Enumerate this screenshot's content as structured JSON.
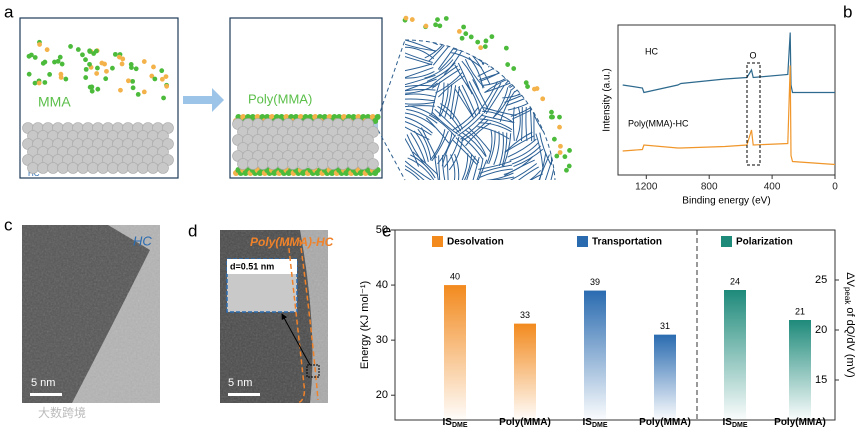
{
  "panel_labels": {
    "a": "a",
    "b": "b",
    "c": "c",
    "d": "d",
    "e": "e"
  },
  "panel_a": {
    "left_label": "MMA",
    "right_label": "Poly(MMA)",
    "substrate_label": "HC"
  },
  "panel_c": {
    "label": "HC",
    "scale_bar": "5 nm"
  },
  "panel_d": {
    "label": "Poly(MMA)-HC",
    "spacing": "d=0.51 nm",
    "scale_bar": "5 nm"
  },
  "watermark": "大数跨境",
  "chart_data": [
    {
      "type": "line",
      "panel": "b",
      "xlabel": "Binding energy (eV)",
      "ylabel": "Intensity (a.u.)",
      "xlim": [
        1380,
        0
      ],
      "xticks": [
        1200,
        800,
        400,
        0
      ],
      "ylim": [
        0,
        100
      ],
      "annotations": [
        "O"
      ],
      "x": [
        1350,
        1225,
        1215,
        1000,
        980,
        700,
        560,
        531,
        520,
        300,
        285,
        280,
        270,
        0
      ],
      "series": [
        {
          "name": "HC",
          "color": "#2e6a8e",
          "values": [
            60,
            58,
            55,
            60,
            61,
            64,
            65,
            70,
            65,
            67,
            95,
            60,
            55,
            55
          ]
        },
        {
          "name": "Poly(MMA)-HC",
          "color": "#f0962a",
          "values": [
            16,
            17,
            20,
            18,
            18,
            19,
            20,
            30,
            20,
            21,
            73,
            13,
            9,
            7
          ]
        }
      ]
    },
    {
      "type": "bar",
      "panel": "e",
      "ylabel": "Energy (KJ mol⁻¹)",
      "y2label": "ΔV",
      "y2label_sub": "peak",
      "y2label_rest": " of dQ/dV (mV)",
      "ylim": [
        15.5,
        50
      ],
      "yticks": [
        20,
        30,
        40,
        50
      ],
      "y2lim": [
        11,
        30
      ],
      "y2ticks": [
        15,
        20,
        25
      ],
      "groups": [
        {
          "name": "Desolvation",
          "color": "#f28a1e",
          "axis": "y",
          "categories": [
            {
              "label": "IS",
              "sub": "DME"
            },
            {
              "label": "Poly(MMA)"
            }
          ],
          "values": [
            40,
            33
          ]
        },
        {
          "name": "Transportation",
          "color": "#2a6bb0",
          "axis": "y",
          "categories": [
            {
              "label": "IS",
              "sub": "DME"
            },
            {
              "label": "Poly(MMA)"
            }
          ],
          "values": [
            39,
            31
          ]
        },
        {
          "name": "Polarization",
          "color": "#1e8a7a",
          "axis": "y2",
          "categories": [
            {
              "label": "IS",
              "sub": "DME"
            },
            {
              "label": "Poly(MMA)"
            }
          ],
          "values": [
            24,
            21
          ]
        }
      ]
    }
  ]
}
